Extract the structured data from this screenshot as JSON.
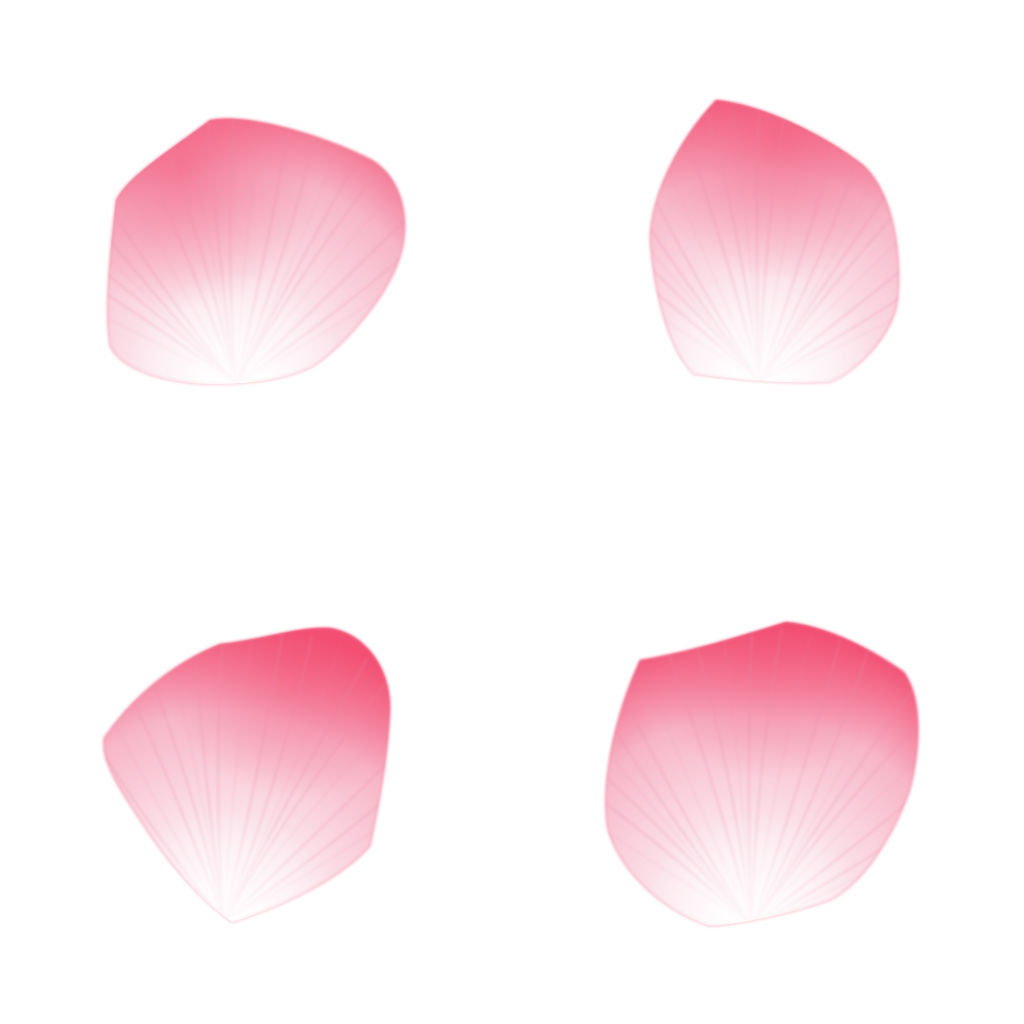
{
  "background_color": "#ffffff",
  "petals": [
    {
      "id": "top-left",
      "rim_color": "#f24f73",
      "body_color": "#f7b6c8",
      "base_color": "#ffffff",
      "vein_color": "#e98aa6"
    },
    {
      "id": "top-right",
      "rim_color": "#f24f73",
      "body_color": "#f7b6c8",
      "base_color": "#ffffff",
      "vein_color": "#e98aa6"
    },
    {
      "id": "bottom-left",
      "rim_color": "#f24f73",
      "body_color": "#f7b6c8",
      "base_color": "#ffffff",
      "vein_color": "#e98aa6"
    },
    {
      "id": "bottom-right",
      "rim_color": "#f24f73",
      "body_color": "#f7b6c8",
      "base_color": "#ffffff",
      "vein_color": "#e98aa6"
    }
  ]
}
